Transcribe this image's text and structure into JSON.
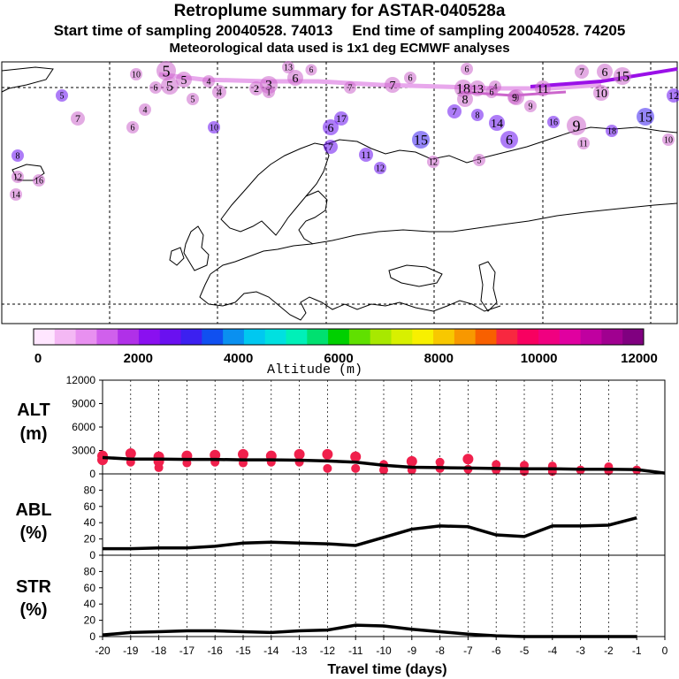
{
  "header": {
    "title": "Retroplume summary for ASTAR-040528a",
    "start_label": "Start time of sampling 20040528. 74013",
    "end_label": "End time of sampling 20040528. 74205",
    "met_label": "Meteorological data used is 1x1 deg ECMWF analyses"
  },
  "colorbar": {
    "label": "Altitude (m)",
    "ticks": [
      "0",
      "2000",
      "4000",
      "6000",
      "8000",
      "10000",
      "12000"
    ],
    "colors": [
      "#ffe6ff",
      "#f4b8f4",
      "#e890f0",
      "#d060ec",
      "#b030e8",
      "#8a10f0",
      "#6a10f0",
      "#3c20f0",
      "#1050f0",
      "#0a90f0",
      "#00c8f0",
      "#00e0e0",
      "#00f0b8",
      "#00e070",
      "#00d000",
      "#60e000",
      "#a8e800",
      "#d8f000",
      "#f8f000",
      "#f8c800",
      "#f89800",
      "#f86000",
      "#f82840",
      "#f80060",
      "#f00080",
      "#e000a0",
      "#c000a0",
      "#a00090",
      "#800080"
    ]
  },
  "map": {
    "plume_labels": [
      {
        "t": "5",
        "c": "#cc66cc"
      },
      {
        "t": "5",
        "c": "#cc66cc"
      },
      {
        "t": "6",
        "c": "#cc66cc"
      },
      {
        "t": "5",
        "c": "#cc66cc"
      },
      {
        "t": "4",
        "c": "#cc66cc"
      },
      {
        "t": "4",
        "c": "#cc66cc"
      },
      {
        "t": "3",
        "c": "#cc66cc"
      },
      {
        "t": "2",
        "c": "#cc66cc"
      },
      {
        "t": "1",
        "c": "#cc66cc"
      },
      {
        "t": "6",
        "c": "#cc66cc"
      },
      {
        "t": "13",
        "c": "#cc66cc"
      },
      {
        "t": "6",
        "c": "#cc66cc"
      },
      {
        "t": "7",
        "c": "#cc66cc"
      },
      {
        "t": "7",
        "c": "#cc66cc"
      },
      {
        "t": "6",
        "c": "#cc66cc"
      },
      {
        "t": "6",
        "c": "#cc66cc"
      },
      {
        "t": "18",
        "c": "#cc66cc"
      },
      {
        "t": "13",
        "c": "#cc66cc"
      },
      {
        "t": "8",
        "c": "#cc66cc"
      },
      {
        "t": "9",
        "c": "#cc66cc"
      },
      {
        "t": "4",
        "c": "#cc66cc"
      },
      {
        "t": "11",
        "c": "#cc66cc"
      },
      {
        "t": "10",
        "c": "#cc66cc"
      },
      {
        "t": "7",
        "c": "#cc66cc"
      },
      {
        "t": "6",
        "c": "#cc66cc"
      },
      {
        "t": "15",
        "c": "#cc66cc"
      },
      {
        "t": "9",
        "c": "#cc66cc"
      },
      {
        "t": "5",
        "c": "#6a10f0"
      },
      {
        "t": "7",
        "c": "#cc66cc"
      },
      {
        "t": "4",
        "c": "#cc66cc"
      },
      {
        "t": "5",
        "c": "#cc66cc"
      },
      {
        "t": "6",
        "c": "#cc66cc"
      },
      {
        "t": "10",
        "c": "#6a10f0"
      },
      {
        "t": "8",
        "c": "#6a10f0"
      },
      {
        "t": "12",
        "c": "#cc66cc"
      },
      {
        "t": "16",
        "c": "#cc66cc"
      },
      {
        "t": "14",
        "c": "#cc66cc"
      },
      {
        "t": "17",
        "c": "#6a10f0"
      },
      {
        "t": "6",
        "c": "#6a10f0"
      },
      {
        "t": "7",
        "c": "#6a10f0"
      },
      {
        "t": "15",
        "c": "#3c20f0"
      },
      {
        "t": "11",
        "c": "#6a10f0"
      },
      {
        "t": "12",
        "c": "#6a10f0"
      },
      {
        "t": "12",
        "c": "#cc66cc"
      },
      {
        "t": "5",
        "c": "#cc66cc"
      },
      {
        "t": "7",
        "c": "#6a10f0"
      },
      {
        "t": "8",
        "c": "#6a10f0"
      },
      {
        "t": "6",
        "c": "#6a10f0"
      },
      {
        "t": "6",
        "c": "#cc66cc"
      },
      {
        "t": "16",
        "c": "#6a10f0"
      },
      {
        "t": "9",
        "c": "#cc66cc"
      },
      {
        "t": "11",
        "c": "#cc66cc"
      },
      {
        "t": "18",
        "c": "#6a10f0"
      },
      {
        "t": "14",
        "c": "#6a10f0"
      },
      {
        "t": "10",
        "c": "#cc66cc"
      },
      {
        "t": "10",
        "c": "#cc66cc"
      },
      {
        "t": "9",
        "c": "#cc66cc"
      },
      {
        "t": "15",
        "c": "#3c20f0"
      },
      {
        "t": "12",
        "c": "#6a10f0"
      }
    ]
  },
  "chart_data": [
    {
      "type": "scatter",
      "name": "ALT",
      "ylabel": "ALT\n(m)",
      "ylim": [
        0,
        12000
      ],
      "yticks": [
        "12000",
        "9000",
        "6000",
        "3000",
        "0"
      ],
      "xlim": [
        -20,
        0
      ],
      "line": {
        "x": [
          -20,
          -19,
          -18,
          -17,
          -16,
          -15,
          -14,
          -13,
          -12,
          -11,
          -10,
          -9,
          -8,
          -7,
          -6,
          -5,
          -4,
          -3,
          -2,
          -1,
          0
        ],
        "y": [
          2100,
          1900,
          1900,
          1850,
          1850,
          1800,
          1800,
          1750,
          1650,
          1500,
          1100,
          850,
          800,
          750,
          700,
          650,
          650,
          600,
          600,
          550,
          100
        ]
      },
      "points": {
        "x": [
          -20,
          -20,
          -19,
          -19,
          -18,
          -18,
          -18,
          -17,
          -17,
          -16,
          -16,
          -15,
          -15,
          -14,
          -14,
          -13,
          -13,
          -12,
          -12,
          -11,
          -11,
          -10,
          -10,
          -9,
          -9,
          -8,
          -8,
          -7,
          -7,
          -6,
          -6,
          -5,
          -5,
          -4,
          -4,
          -3,
          -2,
          -2,
          -1
        ],
        "y": [
          2300,
          1800,
          2600,
          1500,
          2200,
          1600,
          800,
          2300,
          1400,
          2400,
          1500,
          2500,
          1400,
          2300,
          1500,
          2500,
          1500,
          2500,
          700,
          2200,
          700,
          1200,
          500,
          1600,
          500,
          1500,
          700,
          1900,
          600,
          1200,
          500,
          1100,
          300,
          1000,
          300,
          500,
          900,
          400,
          500
        ]
      }
    },
    {
      "type": "line",
      "name": "ABL",
      "ylabel": "ABL\n(%)",
      "ylim": [
        0,
        100
      ],
      "yticks": [
        "80",
        "60",
        "40",
        "20",
        "0"
      ],
      "xlim": [
        -20,
        0
      ],
      "x": [
        -20,
        -19,
        -18,
        -17,
        -16,
        -15,
        -14,
        -13,
        -12,
        -11,
        -10,
        -9,
        -8,
        -7,
        -6,
        -5,
        -4,
        -3,
        -2,
        -1
      ],
      "y": [
        8,
        8,
        9,
        9,
        11,
        15,
        16,
        15,
        14,
        12,
        22,
        32,
        36,
        35,
        25,
        23,
        36,
        36,
        37,
        46
      ]
    },
    {
      "type": "line",
      "name": "STR",
      "ylabel": "STR\n(%)",
      "ylim": [
        0,
        100
      ],
      "yticks": [
        "80",
        "60",
        "40",
        "20",
        "0"
      ],
      "xlim": [
        -20,
        0
      ],
      "xlabel": "Travel time (days)",
      "xticks": [
        "-20",
        "-19",
        "-18",
        "-17",
        "-16",
        "-15",
        "-14",
        "-13",
        "-12",
        "-11",
        "-10",
        "-9",
        "-8",
        "-7",
        "-6",
        "-5",
        "-4",
        "-3",
        "-2",
        "-1",
        "0"
      ],
      "x": [
        -20,
        -19,
        -18,
        -17,
        -16,
        -15,
        -14,
        -13,
        -12,
        -11,
        -10,
        -9,
        -8,
        -7,
        -6,
        -5,
        -4,
        -3,
        -2,
        -1
      ],
      "y": [
        2,
        5,
        6,
        7,
        7,
        6,
        5,
        7,
        8,
        14,
        13,
        9,
        6,
        3,
        1,
        0,
        0,
        0,
        0,
        0
      ]
    }
  ]
}
